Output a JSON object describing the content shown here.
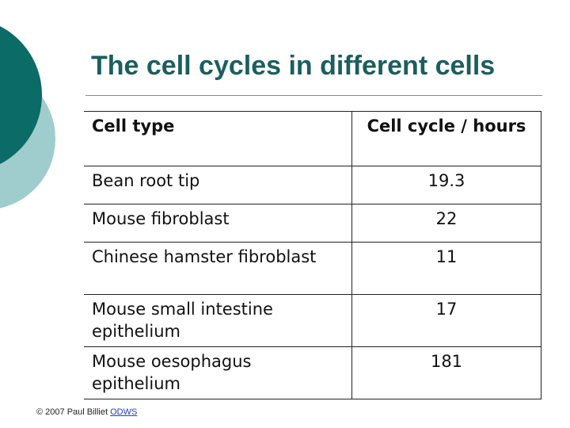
{
  "slide": {
    "title": "The cell cycles in different cells"
  },
  "table": {
    "headers": [
      "Cell type",
      "Cell cycle / hours"
    ],
    "rows": [
      [
        "Bean root tip",
        "19.3"
      ],
      [
        "Mouse fibroblast",
        "22"
      ],
      [
        "Chinese hamster fibroblast",
        "11"
      ],
      [
        "Mouse small intestine epithelium",
        "17"
      ],
      [
        "Mouse oesophagus epithelium",
        "181"
      ]
    ]
  },
  "footer": {
    "text": "© 2007 Paul Billiet",
    "link": "ODWS"
  },
  "colors": {
    "title": "#1b5e5e",
    "circle_dark": "#0b6b66",
    "circle_light": "#9fcccc"
  }
}
